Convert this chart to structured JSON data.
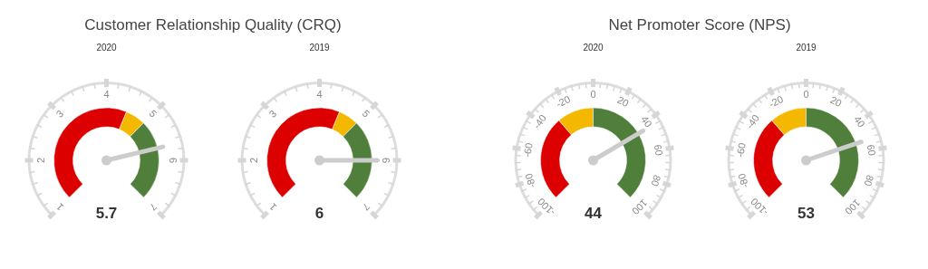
{
  "chart_data": [
    {
      "type": "donut",
      "title": "Customer Relationship Quality (CRQ)",
      "subtitle": "2020",
      "categories": [
        null,
        null,
        null
      ],
      "values": [
        58.3,
        8.3,
        33.4
      ],
      "colors": [
        "#dd0000",
        "#f5b800",
        "#4f7f3a"
      ],
      "annotations": [
        "1",
        "2",
        "3",
        "4",
        "5",
        "6",
        "7",
        "5.7"
      ]
    },
    {
      "type": "donut",
      "subtitle": "2019",
      "categories": [
        null,
        null,
        null
      ],
      "values": [
        58.3,
        8.3,
        33.4
      ],
      "colors": [
        "#dd0000",
        "#f5b800",
        "#4f7f3a"
      ],
      "annotations": [
        "1",
        "2",
        "3",
        "4",
        "5",
        "6",
        "7",
        "6"
      ]
    },
    {
      "type": "donut",
      "title": "Net Promoter Score (NPS)",
      "subtitle": "2020",
      "categories": [
        null,
        null,
        null
      ],
      "values": [
        35,
        15,
        50
      ],
      "colors": [
        "#dd0000",
        "#f5b800",
        "#4f7f3a"
      ],
      "annotations": [
        "-100",
        "-80",
        "-60",
        "-40",
        "-20",
        "0",
        "20",
        "40",
        "60",
        "80",
        "100",
        "44"
      ]
    },
    {
      "type": "donut",
      "subtitle": "2019",
      "categories": [
        null,
        null,
        null
      ],
      "values": [
        35,
        15,
        50
      ],
      "colors": [
        "#dd0000",
        "#f5b800",
        "#4f7f3a"
      ],
      "annotations": [
        "-100",
        "-80",
        "-60",
        "-40",
        "-20",
        "0",
        "20",
        "40",
        "60",
        "80",
        "100",
        "53"
      ]
    }
  ]
}
